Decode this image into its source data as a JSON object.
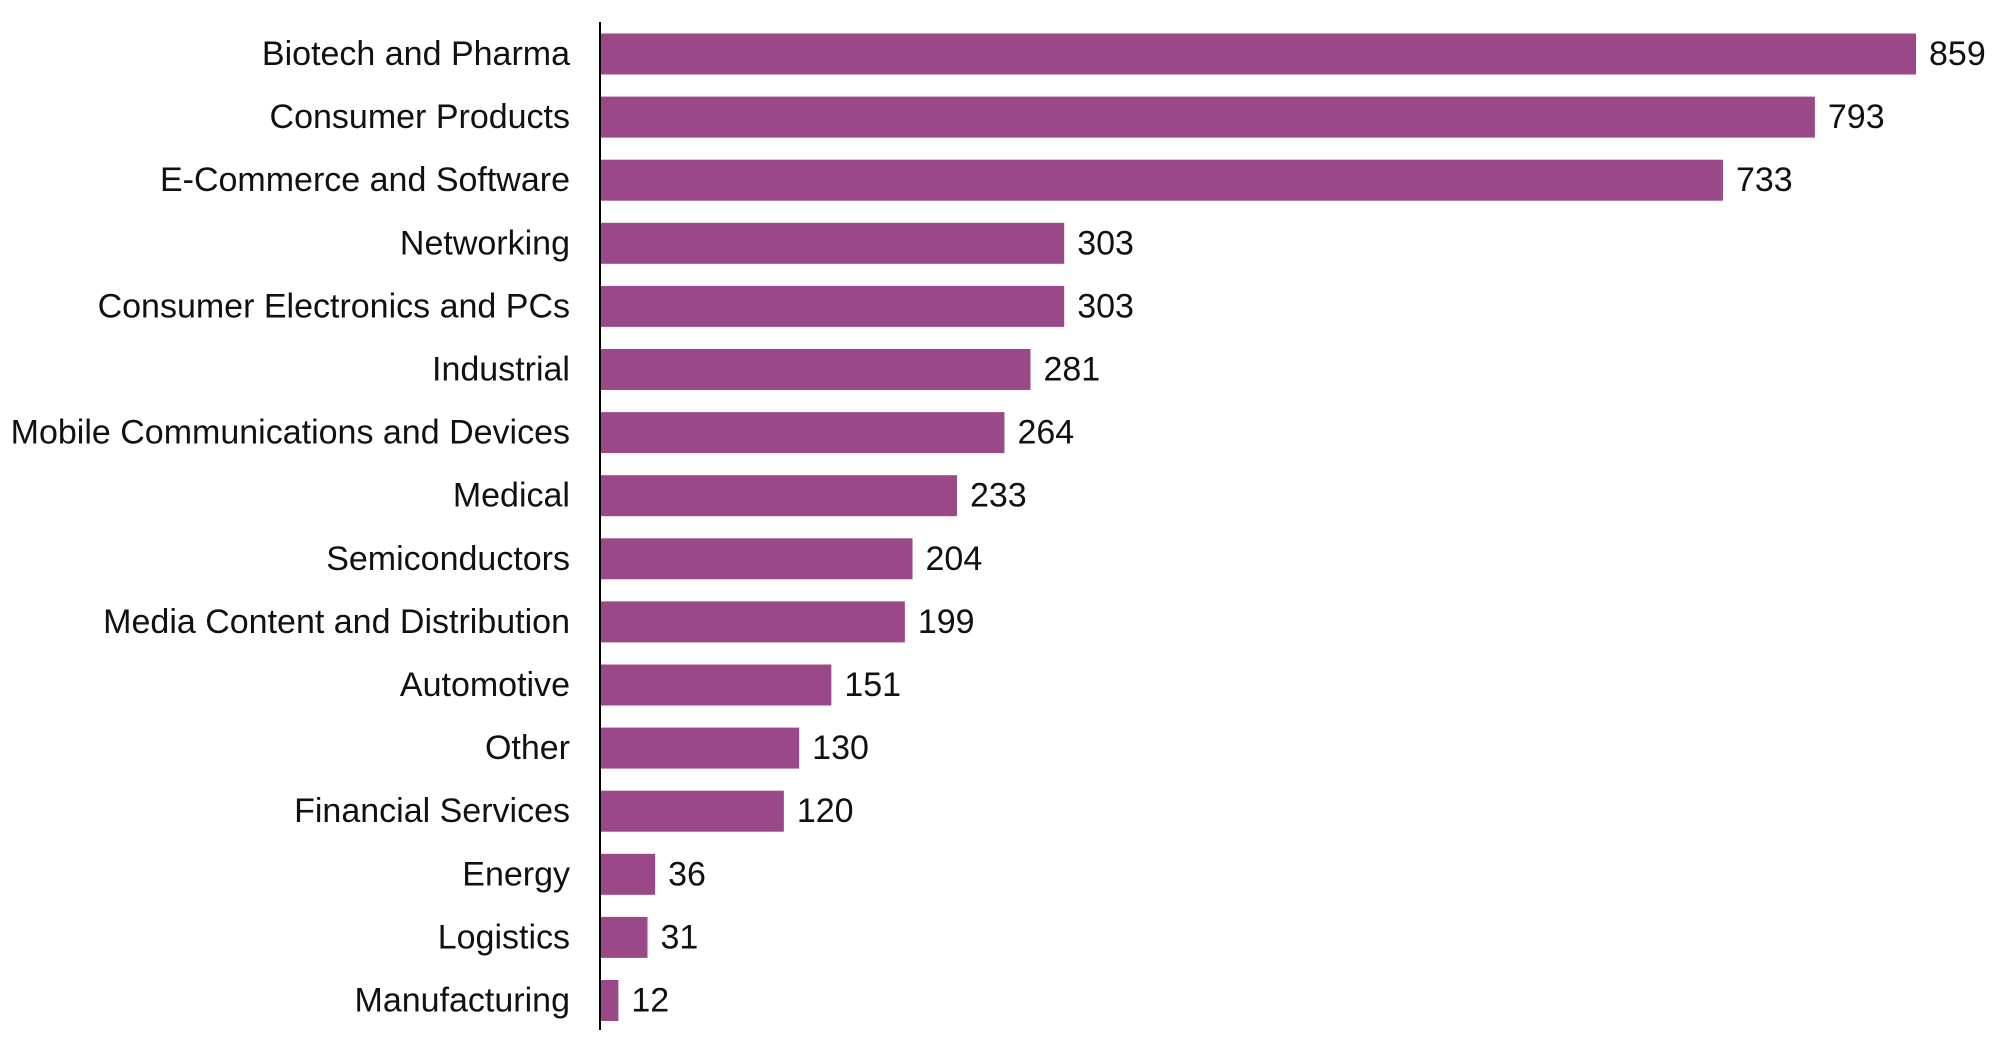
{
  "chart_data": {
    "type": "bar",
    "orientation": "horizontal",
    "categories": [
      "Biotech and Pharma",
      "Consumer Products",
      "E-Commerce and Software",
      "Networking",
      "Consumer Electronics and PCs",
      "Industrial",
      "Mobile Communications and Devices",
      "Medical",
      "Semiconductors",
      "Media Content and Distribution",
      "Automotive",
      "Other",
      "Financial Services",
      "Energy",
      "Logistics",
      "Manufacturing"
    ],
    "values": [
      859,
      793,
      733,
      303,
      303,
      281,
      264,
      233,
      204,
      199,
      151,
      130,
      120,
      36,
      31,
      12
    ],
    "title": "",
    "xlabel": "",
    "ylabel": "",
    "xlim": [
      0,
      859
    ],
    "grid": false,
    "legend": "none",
    "data_labels": true,
    "bar_color": "#9a4888",
    "axis_color": "#000000"
  }
}
